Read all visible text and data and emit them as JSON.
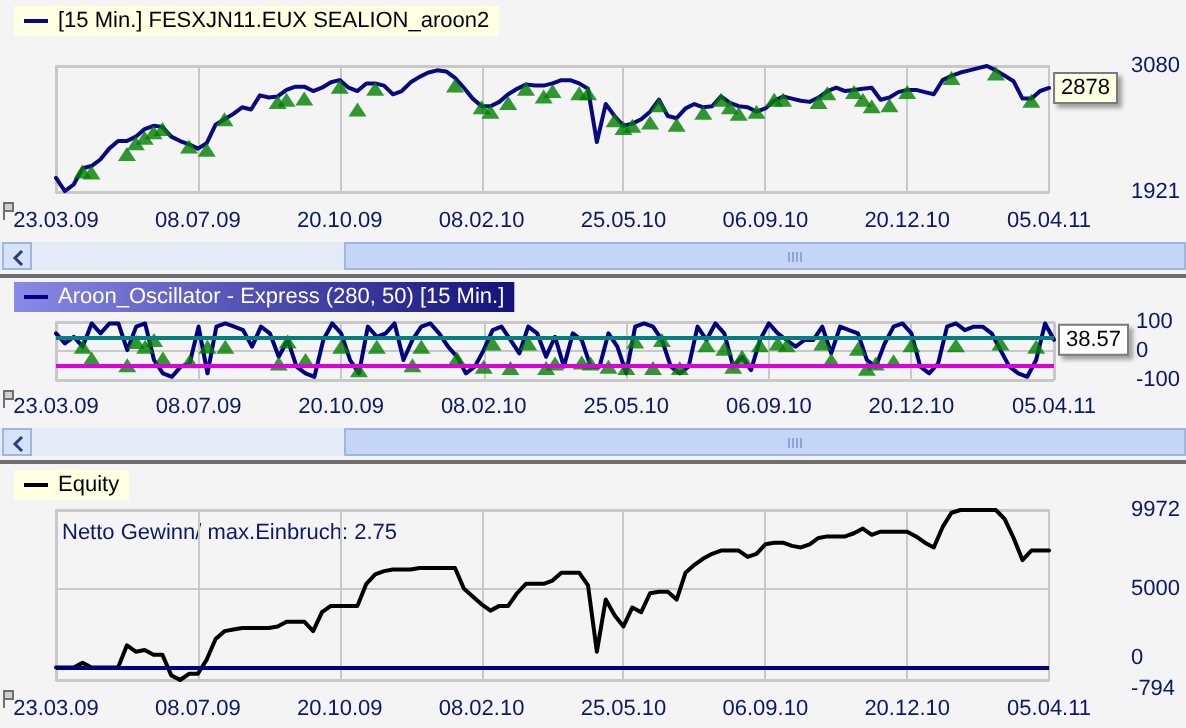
{
  "chart_data": [
    {
      "type": "line",
      "categories": [
        "23.03.09",
        null,
        null,
        null,
        null,
        null,
        null,
        null,
        null,
        null,
        null,
        null,
        null,
        null,
        null,
        null,
        "08.07.09",
        null,
        null,
        null,
        null,
        null,
        null,
        null,
        null,
        null,
        null,
        null,
        null,
        null,
        null,
        null,
        "20.10.09",
        null,
        null,
        null,
        null,
        null,
        null,
        null,
        null,
        null,
        null,
        null,
        null,
        null,
        null,
        null,
        "08.02.10",
        null,
        null,
        null,
        null,
        null,
        null,
        null,
        null,
        null,
        null,
        null,
        null,
        null,
        null,
        null,
        "25.05.10",
        null,
        null,
        null,
        null,
        null,
        null,
        null,
        null,
        null,
        null,
        null,
        null,
        null,
        null,
        null,
        "06.09.10",
        null,
        null,
        null,
        null,
        null,
        null,
        null,
        null,
        null,
        null,
        null,
        null,
        null,
        null,
        null,
        "20.12.10",
        null,
        null,
        null,
        null,
        null,
        null,
        null,
        null,
        null,
        null,
        null,
        null,
        null,
        null,
        null,
        "05.04.11"
      ],
      "series": [
        {
          "name": "[15 Min.] FESXJN11.EUX SEALION_aroon2",
          "color": "#0a0a80",
          "values": [
            2050,
            1930,
            1990,
            2140,
            2160,
            2220,
            2320,
            2390,
            2390,
            2430,
            2500,
            2530,
            2520,
            2430,
            2390,
            2360,
            2320,
            2370,
            2540,
            2590,
            2640,
            2700,
            2680,
            2810,
            2790,
            2800,
            2860,
            2890,
            2890,
            2850,
            2880,
            2930,
            2950,
            2880,
            2850,
            2920,
            2920,
            2900,
            2820,
            2850,
            2930,
            2980,
            3020,
            3040,
            3030,
            2970,
            2880,
            2780,
            2710,
            2710,
            2750,
            2820,
            2870,
            2910,
            2900,
            2900,
            2920,
            2950,
            2950,
            2920,
            2870,
            2380,
            2730,
            2620,
            2530,
            2550,
            2590,
            2660,
            2770,
            2620,
            2600,
            2690,
            2730,
            2700,
            2710,
            2800,
            2740,
            2710,
            2700,
            2660,
            2690,
            2760,
            2800,
            2780,
            2760,
            2750,
            2790,
            2850,
            2880,
            2850,
            2860,
            2870,
            2880,
            2770,
            2790,
            2840,
            2860,
            2860,
            2840,
            2820,
            2950,
            2990,
            3020,
            3040,
            3060,
            3080,
            3040,
            2990,
            2940,
            2780,
            2780,
            2850,
            2878
          ],
          "value_labels": [
            null,
            null,
            null,
            null,
            null,
            null,
            null,
            null,
            null,
            null,
            null,
            null,
            null,
            null,
            null,
            null,
            null,
            null,
            null,
            null,
            null,
            null,
            null,
            null,
            null,
            null,
            null,
            null,
            null,
            null,
            null,
            null,
            null,
            null,
            null,
            null,
            null,
            null,
            null,
            null,
            null,
            null,
            null,
            null,
            null,
            null,
            null,
            null,
            null,
            null,
            null,
            null,
            null,
            null,
            null,
            null,
            null,
            null,
            null,
            null,
            null,
            null,
            null,
            null,
            null,
            null,
            null,
            null,
            null,
            null,
            null,
            null,
            null,
            null,
            null,
            null,
            null,
            null,
            null,
            null,
            null,
            null,
            null,
            null,
            null,
            null,
            null,
            null,
            null,
            null,
            null,
            null,
            null,
            null,
            null,
            null,
            null,
            null,
            null,
            null,
            null,
            null,
            null,
            null,
            null,
            null,
            null,
            null,
            null,
            null,
            null,
            null,
            "2878"
          ]
        },
        {
          "type": "scatter",
          "marker": "triangle",
          "color": "#008000",
          "values": [
            null,
            null,
            null,
            2110,
            2100,
            null,
            null,
            null,
            2270,
            2370,
            2420,
            2470,
            2500,
            null,
            null,
            2340,
            null,
            2310,
            null,
            2590,
            null,
            null,
            null,
            null,
            null,
            2750,
            2770,
            null,
            2780,
            null,
            null,
            null,
            2890,
            null,
            2680,
            null,
            2870,
            null,
            null,
            null,
            null,
            null,
            null,
            null,
            null,
            2900,
            null,
            null,
            2700,
            2660,
            null,
            2740,
            null,
            2870,
            null,
            2800,
            2850,
            null,
            null,
            2830,
            2830,
            null,
            null,
            2580,
            2510,
            2530,
            null,
            2560,
            2720,
            null,
            2540,
            null,
            null,
            2650,
            null,
            2770,
            2700,
            2640,
            null,
            2660,
            null,
            2770,
            2770,
            null,
            null,
            null,
            2750,
            2830,
            null,
            null,
            2840,
            2770,
            2710,
            null,
            2720,
            null,
            2840,
            null,
            null,
            null,
            null,
            2970,
            null,
            null,
            null,
            null,
            3010,
            null,
            null,
            null,
            2760,
            null,
            null
          ]
        }
      ],
      "ylim": [
        1921,
        3080
      ],
      "yticks": [
        1921,
        3080
      ],
      "grid": true,
      "legend": "top left"
    },
    {
      "type": "line",
      "categories": [
        "23.03.09",
        null,
        null,
        null,
        null,
        null,
        null,
        null,
        null,
        null,
        null,
        null,
        null,
        null,
        null,
        null,
        "08.07.09",
        null,
        null,
        null,
        null,
        null,
        null,
        null,
        null,
        null,
        null,
        null,
        null,
        null,
        null,
        null,
        "20.10.09",
        null,
        null,
        null,
        null,
        null,
        null,
        null,
        null,
        null,
        null,
        null,
        null,
        null,
        null,
        null,
        "08.02.10",
        null,
        null,
        null,
        null,
        null,
        null,
        null,
        null,
        null,
        null,
        null,
        null,
        null,
        null,
        null,
        "25.05.10",
        null,
        null,
        null,
        null,
        null,
        null,
        null,
        null,
        null,
        null,
        null,
        null,
        null,
        null,
        null,
        "06.09.10",
        null,
        null,
        null,
        null,
        null,
        null,
        null,
        null,
        null,
        null,
        null,
        null,
        null,
        null,
        null,
        "20.12.10",
        null,
        null,
        null,
        null,
        null,
        null,
        null,
        null,
        null,
        null,
        null,
        null,
        null,
        null,
        null,
        "05.04.11"
      ],
      "series": [
        {
          "name": "Aroon_Oscillator - Express (280, 50) [15 Min.]",
          "color": "#000080",
          "values": [
            61,
            26,
            49,
            15,
            95,
            61,
            95,
            95,
            3,
            84,
            95,
            -31,
            -77,
            -89,
            -54,
            -43,
            84,
            -77,
            84,
            95,
            84,
            72,
            15,
            84,
            61,
            -20,
            38,
            -54,
            -77,
            -89,
            38,
            95,
            61,
            -31,
            -77,
            84,
            49,
            61,
            95,
            -31,
            38,
            84,
            95,
            61,
            15,
            -20,
            -77,
            -54,
            3,
            72,
            84,
            38,
            -8,
            84,
            61,
            -20,
            49,
            -54,
            61,
            38,
            -54,
            -54,
            61,
            15,
            -77,
            84,
            95,
            84,
            38,
            -54,
            -77,
            -54,
            84,
            38,
            95,
            61,
            -54,
            -20,
            -66,
            38,
            95,
            61,
            38,
            15,
            38,
            38,
            84,
            -8,
            84,
            72,
            61,
            -31,
            -54,
            26,
            84,
            95,
            61,
            -54,
            -77,
            -43,
            84,
            95,
            72,
            84,
            84,
            61,
            3,
            -54,
            -77,
            -89,
            -31,
            95,
            38.57
          ],
          "value_labels": [
            null,
            null,
            null,
            null,
            null,
            null,
            null,
            null,
            null,
            null,
            null,
            null,
            null,
            null,
            null,
            null,
            null,
            null,
            null,
            null,
            null,
            null,
            null,
            null,
            null,
            null,
            null,
            null,
            null,
            null,
            null,
            null,
            null,
            null,
            null,
            null,
            null,
            null,
            null,
            null,
            null,
            null,
            null,
            null,
            null,
            null,
            null,
            null,
            null,
            null,
            null,
            null,
            null,
            null,
            null,
            null,
            null,
            null,
            null,
            null,
            null,
            null,
            null,
            null,
            null,
            null,
            null,
            null,
            null,
            null,
            null,
            null,
            null,
            null,
            null,
            null,
            null,
            null,
            null,
            null,
            null,
            null,
            null,
            null,
            null,
            null,
            null,
            null,
            null,
            null,
            null,
            null,
            null,
            null,
            null,
            null,
            null,
            null,
            null,
            null,
            null,
            null,
            null,
            null,
            null,
            null,
            null,
            null,
            null,
            null,
            null,
            null,
            "38.57"
          ]
        },
        {
          "type": "scatter",
          "marker": "triangle",
          "color": "#008000",
          "values": [
            null,
            null,
            null,
            15,
            -26,
            null,
            null,
            null,
            -49,
            31,
            15,
            38,
            -26,
            null,
            null,
            -35,
            null,
            15,
            null,
            15,
            null,
            null,
            null,
            null,
            null,
            -43,
            33,
            null,
            -31,
            null,
            null,
            null,
            15,
            null,
            -66,
            null,
            15,
            null,
            null,
            null,
            -49,
            15,
            null,
            null,
            null,
            -26,
            null,
            null,
            -54,
            26,
            null,
            -59,
            null,
            26,
            null,
            -59,
            -43,
            null,
            null,
            -40,
            -43,
            null,
            -54,
            null,
            -59,
            33,
            null,
            -59,
            38,
            null,
            -59,
            null,
            null,
            20,
            null,
            8,
            -54,
            -20,
            null,
            20,
            null,
            26,
            20,
            null,
            null,
            null,
            26,
            -31,
            null,
            null,
            8,
            -61,
            -43,
            null,
            -35,
            null,
            20,
            null,
            null,
            null,
            null,
            20,
            null,
            null,
            null,
            null,
            26,
            null,
            null,
            null,
            15,
            null,
            null
          ]
        }
      ],
      "ylim": [
        -100,
        100
      ],
      "yticks": [
        -100,
        0,
        100
      ],
      "grid": true,
      "legend": "top left",
      "ref_lines": [
        {
          "axis": "y",
          "value": 50,
          "color": "#008080"
        },
        {
          "axis": "y",
          "value": -50,
          "color": "#dd00dd"
        }
      ]
    },
    {
      "type": "line",
      "categories": [
        "23.03.09",
        null,
        null,
        null,
        null,
        null,
        null,
        null,
        null,
        null,
        null,
        null,
        null,
        null,
        null,
        null,
        "08.07.09",
        null,
        null,
        null,
        null,
        null,
        null,
        null,
        null,
        null,
        null,
        null,
        null,
        null,
        null,
        null,
        "20.10.09",
        null,
        null,
        null,
        null,
        null,
        null,
        null,
        null,
        null,
        null,
        null,
        null,
        null,
        null,
        null,
        "08.02.10",
        null,
        null,
        null,
        null,
        null,
        null,
        null,
        null,
        null,
        null,
        null,
        null,
        null,
        null,
        null,
        "25.05.10",
        null,
        null,
        null,
        null,
        null,
        null,
        null,
        null,
        null,
        null,
        null,
        null,
        null,
        null,
        null,
        "06.09.10",
        null,
        null,
        null,
        null,
        null,
        null,
        null,
        null,
        null,
        null,
        null,
        null,
        null,
        null,
        null,
        "20.12.10",
        null,
        null,
        null,
        null,
        null,
        null,
        null,
        null,
        null,
        null,
        null,
        null,
        null,
        null,
        null,
        "05.04.11"
      ],
      "series": [
        {
          "name": "Equity",
          "color": "#000000",
          "values": [
            0,
            0,
            0,
            300,
            0,
            0,
            0,
            0,
            1400,
            1000,
            1100,
            800,
            800,
            -500,
            -794,
            -400,
            -400,
            500,
            1800,
            2300,
            2400,
            2500,
            2500,
            2500,
            2500,
            2600,
            2900,
            2900,
            2900,
            2300,
            3500,
            3900,
            3900,
            3900,
            3900,
            5300,
            5900,
            6100,
            6200,
            6200,
            6200,
            6300,
            6300,
            6300,
            6300,
            6300,
            5000,
            4500,
            4000,
            3600,
            3900,
            3900,
            4700,
            5300,
            5300,
            5300,
            5500,
            6000,
            6000,
            6000,
            5200,
            1000,
            4300,
            3300,
            2600,
            3800,
            3500,
            4700,
            4800,
            4800,
            4300,
            6000,
            6500,
            6900,
            7200,
            7400,
            7400,
            7400,
            7000,
            7200,
            7800,
            7900,
            7900,
            7700,
            7600,
            7800,
            8200,
            8300,
            8300,
            8300,
            8500,
            8800,
            8400,
            8600,
            8600,
            8600,
            8600,
            8300,
            7900,
            7600,
            8900,
            9800,
            9972,
            9972,
            9972,
            9972,
            9972,
            9400,
            8200,
            6800,
            7400,
            7400,
            7400
          ]
        }
      ],
      "ylim": [
        -794,
        9972
      ],
      "yticks": [
        -794,
        0,
        5000,
        9972
      ],
      "grid": true,
      "legend": "top left",
      "ref_lines": [
        {
          "axis": "y",
          "value": 0,
          "color": "#000080"
        }
      ],
      "annotations": [
        "Netto Gewinn/ max.Einbruch: 2.75"
      ]
    }
  ]
}
